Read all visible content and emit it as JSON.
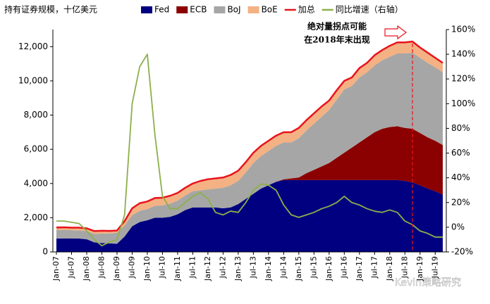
{
  "chart_data": {
    "type": "area",
    "title": "持有证券规模，十亿美元",
    "annotation": [
      "绝对量拐点可能",
      "在2018年末出现"
    ],
    "watermark": "Kevin策略研究",
    "categories": [
      "Jan-07",
      null,
      "Jul-07",
      null,
      "Jan-08",
      null,
      "Jul-08",
      null,
      "Jan-09",
      null,
      "Jul-09",
      null,
      "Jan-10",
      null,
      "Jul-10",
      null,
      "Jan-11",
      null,
      "Jul-11",
      null,
      "Jan-12",
      null,
      "Jul-12",
      null,
      "Jan-13",
      null,
      "Jul-13",
      null,
      "Jan-14",
      null,
      "Jul-14",
      null,
      "Jan-15",
      null,
      "Jul-15",
      null,
      "Jan-16",
      null,
      "Jul-16",
      null,
      "Jan-17",
      null,
      "Jul-17",
      null,
      "Jan-18",
      null,
      "Jul-18",
      null,
      "Jan-19",
      null,
      "Jul-19",
      null
    ],
    "series": [
      {
        "name": "Fed",
        "type": "area",
        "color": "#000080",
        "values": [
          780,
          790,
          790,
          780,
          740,
          560,
          520,
          500,
          480,
          900,
          1500,
          1750,
          1850,
          2000,
          2000,
          2050,
          2200,
          2450,
          2600,
          2600,
          2600,
          2600,
          2550,
          2600,
          2800,
          3100,
          3400,
          3700,
          3900,
          4100,
          4200,
          4200,
          4200,
          4200,
          4200,
          4200,
          4200,
          4200,
          4200,
          4200,
          4200,
          4200,
          4200,
          4200,
          4200,
          4200,
          4150,
          4050,
          3900,
          3700,
          3550,
          3350
        ]
      },
      {
        "name": "ECB",
        "type": "area",
        "color": "#8b0000",
        "values": [
          0,
          0,
          0,
          0,
          0,
          0,
          0,
          0,
          0,
          0,
          0,
          0,
          0,
          0,
          0,
          0,
          0,
          0,
          0,
          0,
          0,
          0,
          0,
          0,
          0,
          0,
          0,
          0,
          0,
          0,
          50,
          100,
          150,
          400,
          600,
          800,
          1000,
          1300,
          1600,
          1900,
          2200,
          2500,
          2800,
          3000,
          3100,
          3150,
          3100,
          3150,
          3050,
          3000,
          2950,
          2900
        ]
      },
      {
        "name": "BoJ",
        "type": "area",
        "color": "#a6a6a6",
        "values": [
          500,
          500,
          480,
          480,
          480,
          500,
          550,
          580,
          640,
          650,
          650,
          650,
          650,
          700,
          720,
          780,
          800,
          850,
          950,
          1000,
          1050,
          1100,
          1200,
          1300,
          1350,
          1550,
          1800,
          1900,
          2000,
          2100,
          2150,
          2100,
          2300,
          2500,
          2700,
          2900,
          3100,
          3400,
          3700,
          3600,
          3800,
          3800,
          3900,
          4000,
          4100,
          4250,
          4350,
          4450,
          4400,
          4350,
          4300,
          4250
        ]
      },
      {
        "name": "BoE",
        "type": "area",
        "color": "#f4b183",
        "values": [
          150,
          150,
          150,
          160,
          160,
          160,
          170,
          150,
          130,
          250,
          400,
          450,
          450,
          450,
          450,
          450,
          450,
          450,
          450,
          550,
          600,
          600,
          600,
          600,
          600,
          600,
          600,
          600,
          600,
          600,
          600,
          600,
          600,
          600,
          600,
          600,
          550,
          550,
          500,
          500,
          550,
          550,
          600,
          600,
          650,
          650,
          650,
          650,
          600,
          600,
          550,
          550
        ]
      },
      {
        "name": "加总",
        "type": "line",
        "color": "#e8141c",
        "values": [
          1430,
          1440,
          1420,
          1420,
          1380,
          1220,
          1240,
          1230,
          1250,
          1800,
          2550,
          2850,
          2950,
          3150,
          3170,
          3280,
          3450,
          3750,
          4000,
          4150,
          4250,
          4300,
          4350,
          4500,
          4750,
          5250,
          5800,
          6200,
          6500,
          6800,
          7000,
          7000,
          7250,
          7700,
          8100,
          8500,
          8850,
          9450,
          10000,
          10200,
          10750,
          11050,
          11500,
          11800,
          12050,
          12250,
          12250,
          12300,
          11950,
          11650,
          11350,
          11050
        ]
      },
      {
        "name": "同比增速（右轴）",
        "type": "line",
        "axis": "y2",
        "color": "#8cb04a",
        "values": [
          5,
          5,
          4,
          3,
          -3,
          -10,
          -15,
          -12,
          -10,
          10,
          100,
          130,
          140,
          75,
          25,
          15,
          15,
          20,
          25,
          28,
          23,
          12,
          10,
          13,
          12,
          20,
          30,
          35,
          34,
          30,
          18,
          10,
          8,
          10,
          12,
          15,
          17,
          20,
          25,
          20,
          18,
          15,
          13,
          12,
          14,
          12,
          5,
          2,
          -3,
          -5,
          -8,
          -8
        ]
      }
    ],
    "ylim": [
      0,
      13000
    ],
    "yticks": [
      0,
      {
        "value": 2000,
        "label": "2,000"
      },
      {
        "value": 4000,
        "label": "4,000"
      },
      {
        "value": 6000,
        "label": "6,000"
      },
      {
        "value": 8000,
        "label": "8,000"
      },
      {
        "value": 10000,
        "label": "10,000"
      },
      {
        "value": 12000,
        "label": "12,000"
      }
    ],
    "y2lim": [
      -20,
      160
    ],
    "y2ticks": [
      {
        "value": -20,
        "label": "-20%"
      },
      {
        "value": 0,
        "label": "0%"
      },
      {
        "value": 20,
        "label": "20%"
      },
      {
        "value": 40,
        "label": "40%"
      },
      {
        "value": 60,
        "label": "60%"
      },
      {
        "value": 80,
        "label": "80%"
      },
      {
        "value": 100,
        "label": "100%"
      },
      {
        "value": 120,
        "label": "120%"
      },
      {
        "value": 140,
        "label": "140%"
      },
      {
        "value": 160,
        "label": "160%"
      }
    ],
    "grid": false
  }
}
